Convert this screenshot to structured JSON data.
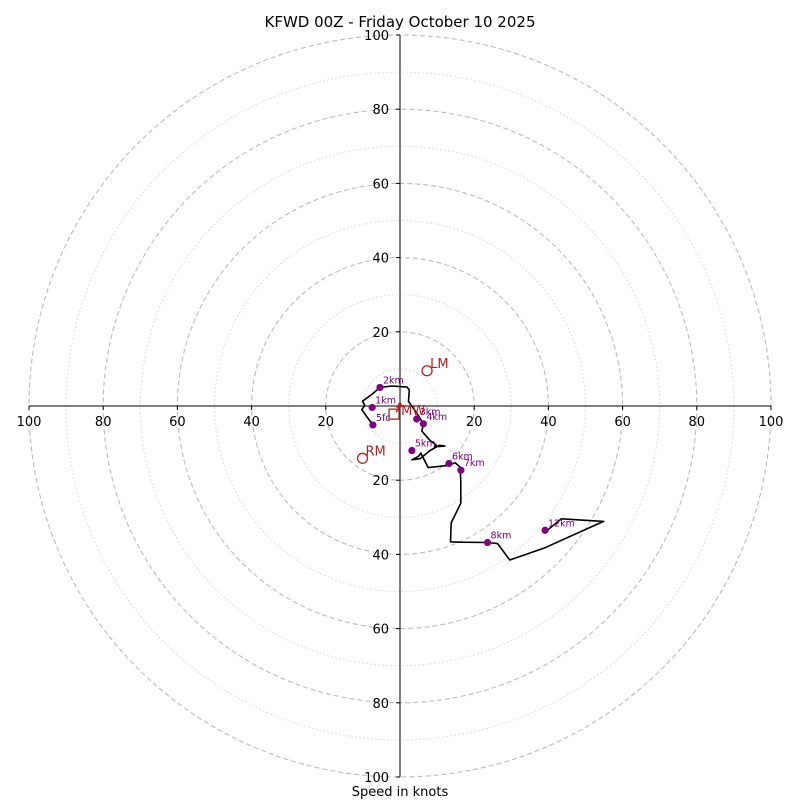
{
  "chart_data": {
    "type": "scatter",
    "title": "KFWD 00Z - Friday October 10 2025",
    "xlabel": "Speed in knots",
    "ylabel": "",
    "xlim": [
      -100,
      100
    ],
    "ylim": [
      -100,
      100
    ],
    "rings": {
      "major": [
        20,
        40,
        60,
        80,
        100
      ],
      "minor": [
        10,
        30,
        50,
        70,
        90
      ]
    },
    "x_ticks": [
      {
        "value": -100,
        "label": "100"
      },
      {
        "value": -80,
        "label": "80"
      },
      {
        "value": -60,
        "label": "60"
      },
      {
        "value": -40,
        "label": "40"
      },
      {
        "value": -20,
        "label": "20"
      },
      {
        "value": 20,
        "label": "20"
      },
      {
        "value": 40,
        "label": "40"
      },
      {
        "value": 60,
        "label": "60"
      },
      {
        "value": 80,
        "label": "80"
      },
      {
        "value": 100,
        "label": "100"
      }
    ],
    "y_ticks": [
      {
        "value": 100,
        "label": "100"
      },
      {
        "value": 80,
        "label": "80"
      },
      {
        "value": 60,
        "label": "60"
      },
      {
        "value": 40,
        "label": "40"
      },
      {
        "value": 20,
        "label": "20"
      },
      {
        "value": -20,
        "label": "20"
      },
      {
        "value": -40,
        "label": "40"
      },
      {
        "value": -60,
        "label": "60"
      },
      {
        "value": -80,
        "label": "80"
      },
      {
        "value": -100,
        "label": "100"
      }
    ],
    "hodograph_trace": {
      "u": [
        -7.3,
        -8.8,
        -10.3,
        -9.5,
        -10.1,
        -7.5,
        -5.4,
        -2.2,
        1.9,
        2.5,
        2.3,
        4.5,
        5.5,
        6.3,
        5.9,
        8.1,
        9.8,
        9.3,
        12.1,
        10.6,
        8.1,
        5.4,
        3.2,
        5.1,
        5.6,
        7.6,
        12.9,
        14.9,
        16.2,
        16.4,
        16.4,
        13.8,
        13.6,
        16.0,
        23.6,
        26.3,
        29.6,
        39.1,
        51.7,
        54.9,
        43.5,
        39.1
      ],
      "v": [
        -5.1,
        -3.1,
        -1.0,
        0.2,
        1.3,
        3.2,
        5.0,
        5.4,
        5.1,
        4.3,
        1.2,
        -1.9,
        -3.5,
        -4.8,
        -6.8,
        -9.3,
        -10.6,
        -11.0,
        -10.8,
        -10.6,
        -12.0,
        -14.2,
        -14.5,
        -13.5,
        -12.7,
        -16.6,
        -16.0,
        -15.3,
        -16.5,
        -20.3,
        -26.2,
        -31.5,
        -36.6,
        -36.7,
        -36.8,
        -37.1,
        -41.5,
        -38.2,
        -32.5,
        -31.1,
        -30.4,
        -34.0
      ]
    },
    "height_markers": [
      {
        "label": "5fc",
        "u": -7.3,
        "v": -5.1
      },
      {
        "label": "1km",
        "u": -7.5,
        "v": -0.4
      },
      {
        "label": "2km",
        "u": -5.4,
        "v": 5.0
      },
      {
        "label": "3km",
        "u": 4.5,
        "v": -3.5
      },
      {
        "label": "4km",
        "u": 6.3,
        "v": -4.8
      },
      {
        "label": "5km",
        "u": 3.2,
        "v": -12.0
      },
      {
        "label": "6km",
        "u": 13.2,
        "v": -15.5
      },
      {
        "label": "7km",
        "u": 16.4,
        "v": -17.3
      },
      {
        "label": "8km",
        "u": 23.6,
        "v": -36.8
      },
      {
        "label": "12km",
        "u": 39.1,
        "v": -33.5
      }
    ],
    "storm_motions": [
      {
        "label": "LM",
        "u": 7.3,
        "v": 9.5,
        "marker": "circle",
        "color": "#b22222"
      },
      {
        "label": "RM",
        "u": -10.1,
        "v": -14.1,
        "marker": "circle",
        "color": "#b22222"
      },
      {
        "label": "MW",
        "u": -1.6,
        "v": -2.2,
        "marker": "square",
        "color": "#b22222"
      }
    ],
    "grid": true
  }
}
